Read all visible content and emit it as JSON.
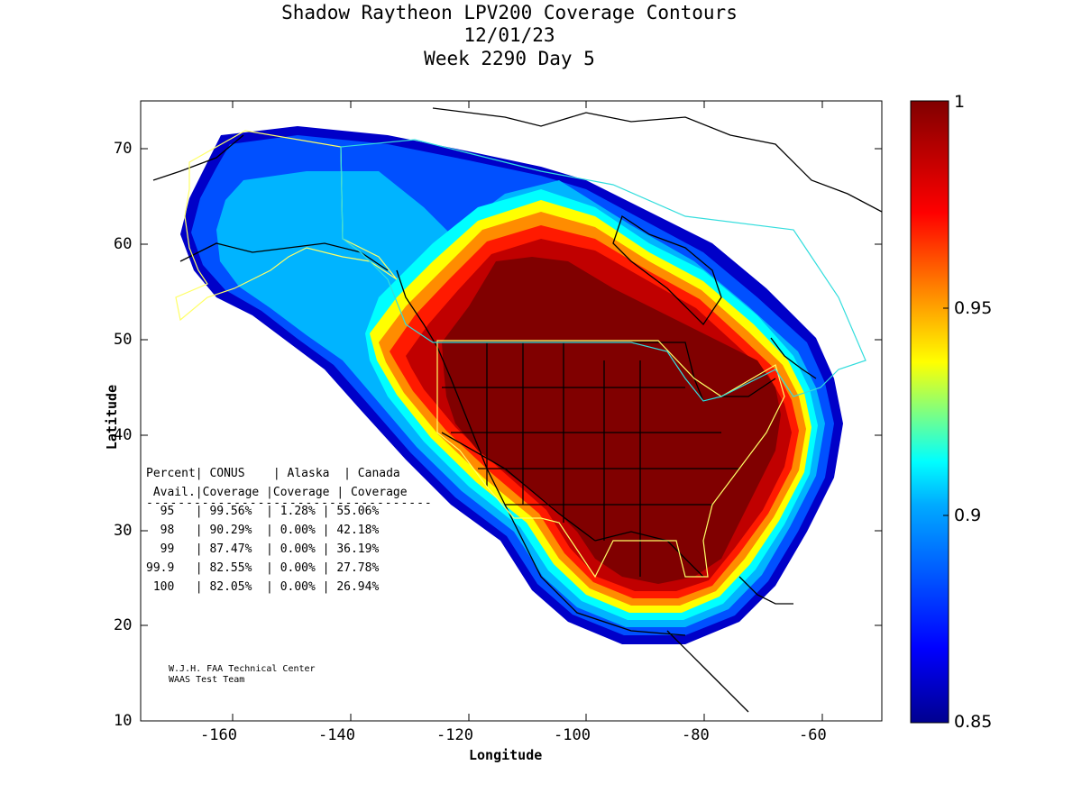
{
  "title": {
    "line1": "Shadow Raytheon LPV200 Coverage Contours",
    "line2": "12/01/23",
    "line3": "Week 2290 Day 5"
  },
  "axes": {
    "xlabel": "Longitude",
    "ylabel": "Latitude",
    "xticks": [
      "-160",
      "-140",
      "-120",
      "-100",
      "-80",
      "-60"
    ],
    "yticks": [
      "70",
      "60",
      "50",
      "40",
      "30",
      "20",
      "10"
    ],
    "xlim": [
      -175,
      -50
    ],
    "ylim": [
      10,
      75
    ]
  },
  "colorbar": {
    "min": 0.85,
    "max": 1,
    "ticks": [
      "1",
      "0.95",
      "0.9",
      "0.85"
    ]
  },
  "stats_table": {
    "header1": "Percent| CONUS    | Alaska  | Canada",
    "header2": " Avail.|Coverage |Coverage | Coverage",
    "separator": "------------------------------------",
    "rows": [
      "  95   | 99.56%  | 1.28% | 55.06%",
      "  98   | 90.29%  | 0.00% | 42.18%",
      "  99   | 87.47%  | 0.00% | 36.19%",
      "99.9   | 82.55%  | 0.00% | 27.78%",
      " 100   | 82.05%  | 0.00% | 26.94%"
    ]
  },
  "credit": {
    "line1": "W.J.H. FAA Technical Center",
    "line2": "WAAS Test Team"
  },
  "colors": {
    "coverage_max": "#800000",
    "coverage_min": "#00008f",
    "service_area_outline": "#ffff66",
    "canada_outline": "#33dddd"
  }
}
